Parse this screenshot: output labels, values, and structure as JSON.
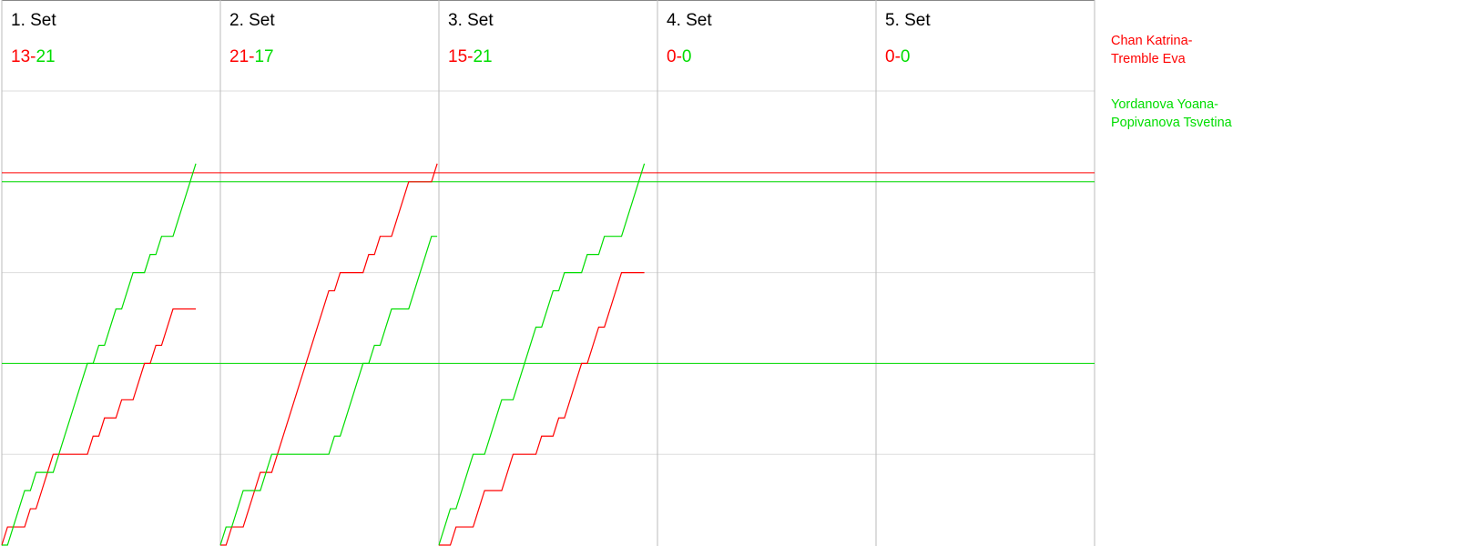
{
  "chart_data": {
    "type": "line",
    "ylim": [
      0,
      25
    ],
    "yticks": [
      5,
      10,
      15,
      20
    ],
    "xlim": [
      0,
      38.3
    ],
    "grid": true,
    "teams": [
      {
        "name": [
          "Chan Katrina-",
          "Tremble Eva"
        ],
        "color": "#ff0000"
      },
      {
        "name": [
          "Yordanova Yoana-",
          "Popivanova Tsvetina"
        ],
        "color": "#00dd00"
      }
    ],
    "reference_lines": [
      {
        "value": 20.5,
        "color": "#ff0000"
      },
      {
        "value": 20,
        "color": "#00dd00"
      },
      {
        "value": 10,
        "color": "#00dd00"
      }
    ],
    "sets": [
      {
        "title": "1. Set",
        "score": [
          "13-",
          "21"
        ],
        "series": [
          [
            0,
            1,
            1,
            1,
            1,
            2,
            2,
            3,
            4,
            5,
            5,
            5,
            5,
            5,
            5,
            5,
            6,
            6,
            7,
            7,
            7,
            8,
            8,
            8,
            9,
            10,
            10,
            11,
            11,
            12,
            13,
            13,
            13,
            13,
            13
          ],
          [
            0,
            0,
            1,
            2,
            3,
            3,
            4,
            4,
            4,
            4,
            5,
            6,
            7,
            8,
            9,
            10,
            10,
            11,
            11,
            12,
            13,
            13,
            14,
            15,
            15,
            15,
            16,
            16,
            17,
            17,
            17,
            18,
            19,
            20,
            21
          ]
        ]
      },
      {
        "title": "2. Set",
        "score": [
          "21-",
          "17"
        ],
        "series": [
          [
            0,
            0,
            1,
            1,
            1,
            2,
            3,
            4,
            4,
            4,
            5,
            6,
            7,
            8,
            9,
            10,
            11,
            12,
            13,
            14,
            14,
            15,
            15,
            15,
            15,
            15,
            16,
            16,
            17,
            17,
            17,
            18,
            19,
            20,
            20,
            20,
            20,
            20,
            21
          ],
          [
            0,
            1,
            1,
            2,
            3,
            3,
            3,
            3,
            4,
            5,
            5,
            5,
            5,
            5,
            5,
            5,
            5,
            5,
            5,
            5,
            6,
            6,
            7,
            8,
            9,
            10,
            10,
            11,
            11,
            12,
            13,
            13,
            13,
            13,
            14,
            15,
            16,
            17,
            17
          ]
        ]
      },
      {
        "title": "3. Set",
        "score": [
          "15-",
          "21"
        ],
        "series": [
          [
            0,
            0,
            0,
            1,
            1,
            1,
            1,
            2,
            3,
            3,
            3,
            3,
            4,
            5,
            5,
            5,
            5,
            5,
            6,
            6,
            6,
            7,
            7,
            8,
            9,
            10,
            10,
            11,
            12,
            12,
            13,
            14,
            15,
            15,
            15,
            15,
            15
          ],
          [
            0,
            1,
            2,
            2,
            3,
            4,
            5,
            5,
            5,
            6,
            7,
            8,
            8,
            8,
            9,
            10,
            11,
            12,
            12,
            13,
            14,
            14,
            15,
            15,
            15,
            15,
            16,
            16,
            16,
            17,
            17,
            17,
            17,
            18,
            19,
            20,
            21
          ]
        ]
      },
      {
        "title": "4. Set",
        "score": [
          "0-",
          "0"
        ]
      },
      {
        "title": "5. Set",
        "score": [
          "0-",
          "0"
        ]
      }
    ]
  }
}
